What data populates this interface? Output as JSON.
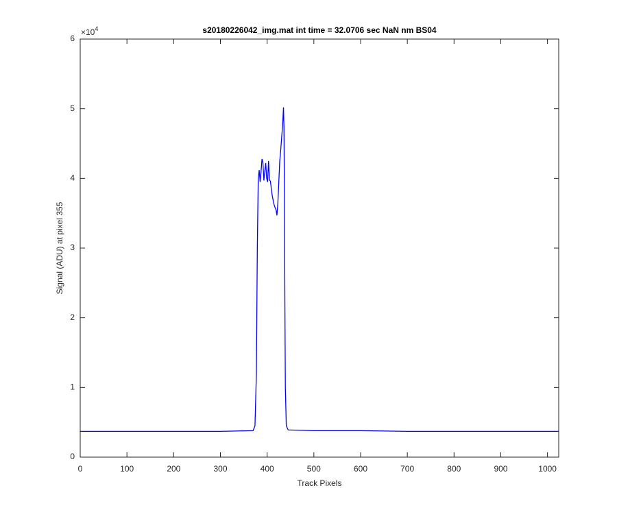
{
  "chart_data": {
    "type": "line",
    "title": "s20180226042_img.mat int time = 32.0706 sec  NaN nm BS04",
    "x_label": "Track Pixels",
    "y_label": "Signal (ADU) at pixel 355",
    "y_multiplier": {
      "base": "×10",
      "exponent": "4"
    },
    "x": [
      0,
      100,
      200,
      300,
      370,
      374,
      377,
      379,
      381,
      383,
      385,
      387,
      389,
      391,
      393,
      395,
      397,
      399,
      401,
      403,
      405,
      407,
      409,
      411,
      413,
      415,
      417,
      419,
      421,
      423,
      425,
      427,
      429,
      431,
      433,
      435,
      436,
      437,
      438,
      439,
      441,
      445,
      500,
      600,
      700,
      800,
      900,
      1000,
      1024
    ],
    "series": [
      {
        "color": "#0000ff",
        "values": [
          3700,
          3700,
          3700,
          3700,
          3800,
          4500,
          12000,
          30000,
          40000,
          41200,
          39500,
          41000,
          42800,
          42300,
          39700,
          41000,
          42200,
          40000,
          39500,
          42500,
          39800,
          39600,
          38500,
          37500,
          36800,
          36200,
          35800,
          35500,
          34700,
          36500,
          39500,
          42500,
          44000,
          45800,
          47500,
          50200,
          47500,
          38000,
          22000,
          10000,
          4500,
          3900,
          3800,
          3800,
          3700,
          3700,
          3700,
          3700,
          3700
        ]
      }
    ],
    "xlim": [
      0,
      1024
    ],
    "ylim": [
      0,
      60000
    ],
    "xticks": [
      0,
      100,
      200,
      300,
      400,
      500,
      600,
      700,
      800,
      900,
      1000
    ],
    "yticks": [
      0,
      {
        "value": 10000,
        "label": "1"
      },
      {
        "value": 20000,
        "label": "2"
      },
      {
        "value": 30000,
        "label": "3"
      },
      {
        "value": 40000,
        "label": "4"
      },
      {
        "value": 50000,
        "label": "5"
      },
      {
        "value": 60000,
        "label": "6"
      }
    ],
    "grid": false
  }
}
